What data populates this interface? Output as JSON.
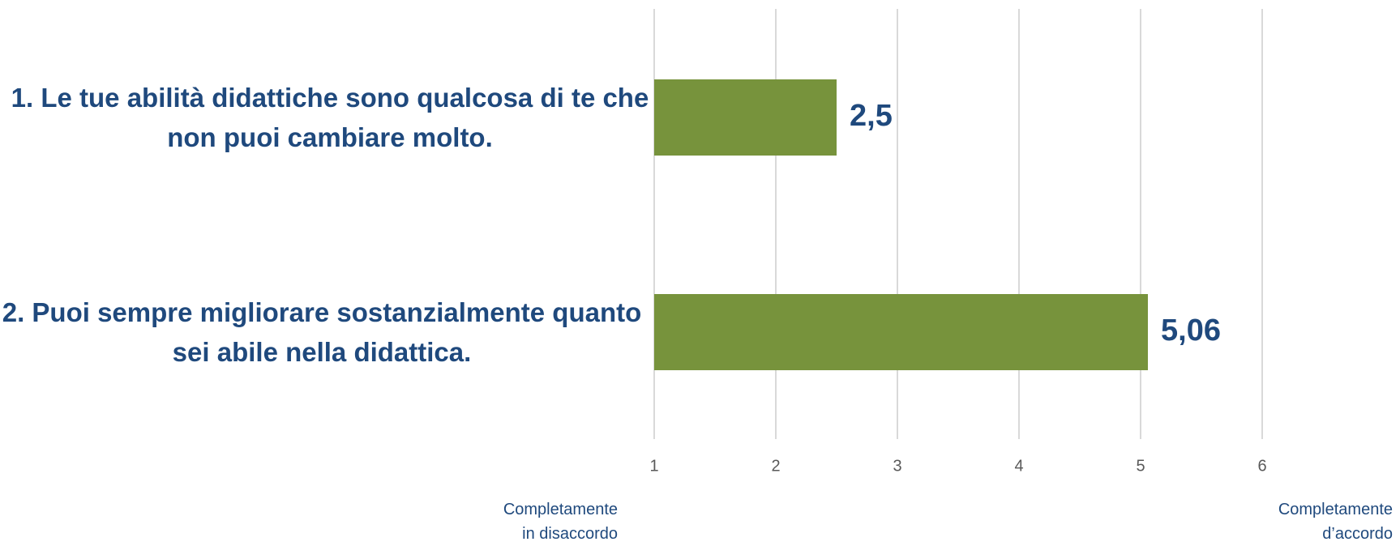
{
  "chart_data": {
    "type": "bar",
    "orientation": "horizontal",
    "categories": [
      "1. Le tue abilità didattiche sono qualcosa di te che non puoi cambiare molto.",
      "2. Puoi sempre migliorare sostanzialmente quanto sei abile nella didattica."
    ],
    "values": [
      2.5,
      5.06
    ],
    "value_labels": [
      "2,5",
      "5,06"
    ],
    "color": "#77933c",
    "xlim": [
      1,
      6
    ],
    "xticks": [
      1,
      2,
      3,
      4,
      5,
      6
    ],
    "grid": true,
    "annotations": [
      "Completamente in disaccordo",
      "Completamente d’accordo"
    ]
  }
}
